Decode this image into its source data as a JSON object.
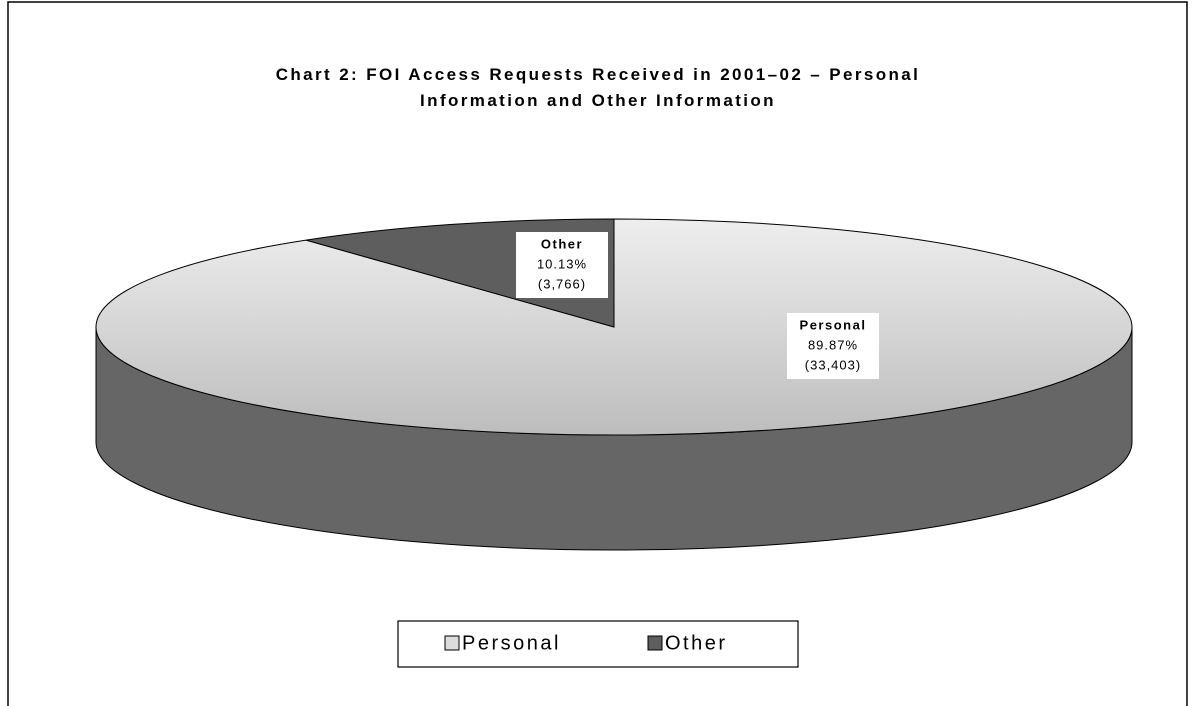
{
  "chart_data": {
    "type": "pie3d",
    "title": "Chart 2: FOI Access Requests Received in 2001–02 – Personal Information and Other Information",
    "categories": [
      "Personal",
      "Other"
    ],
    "values": [
      89.87,
      10.13
    ],
    "value_labels": [
      "89.87%",
      "10.13%"
    ],
    "counts": [
      33403,
      3766
    ],
    "count_labels": [
      "(33,403)",
      "(3,766)"
    ],
    "colors": [
      "#dcdcdc",
      "#5e5e5e"
    ],
    "legend": "bottom"
  }
}
